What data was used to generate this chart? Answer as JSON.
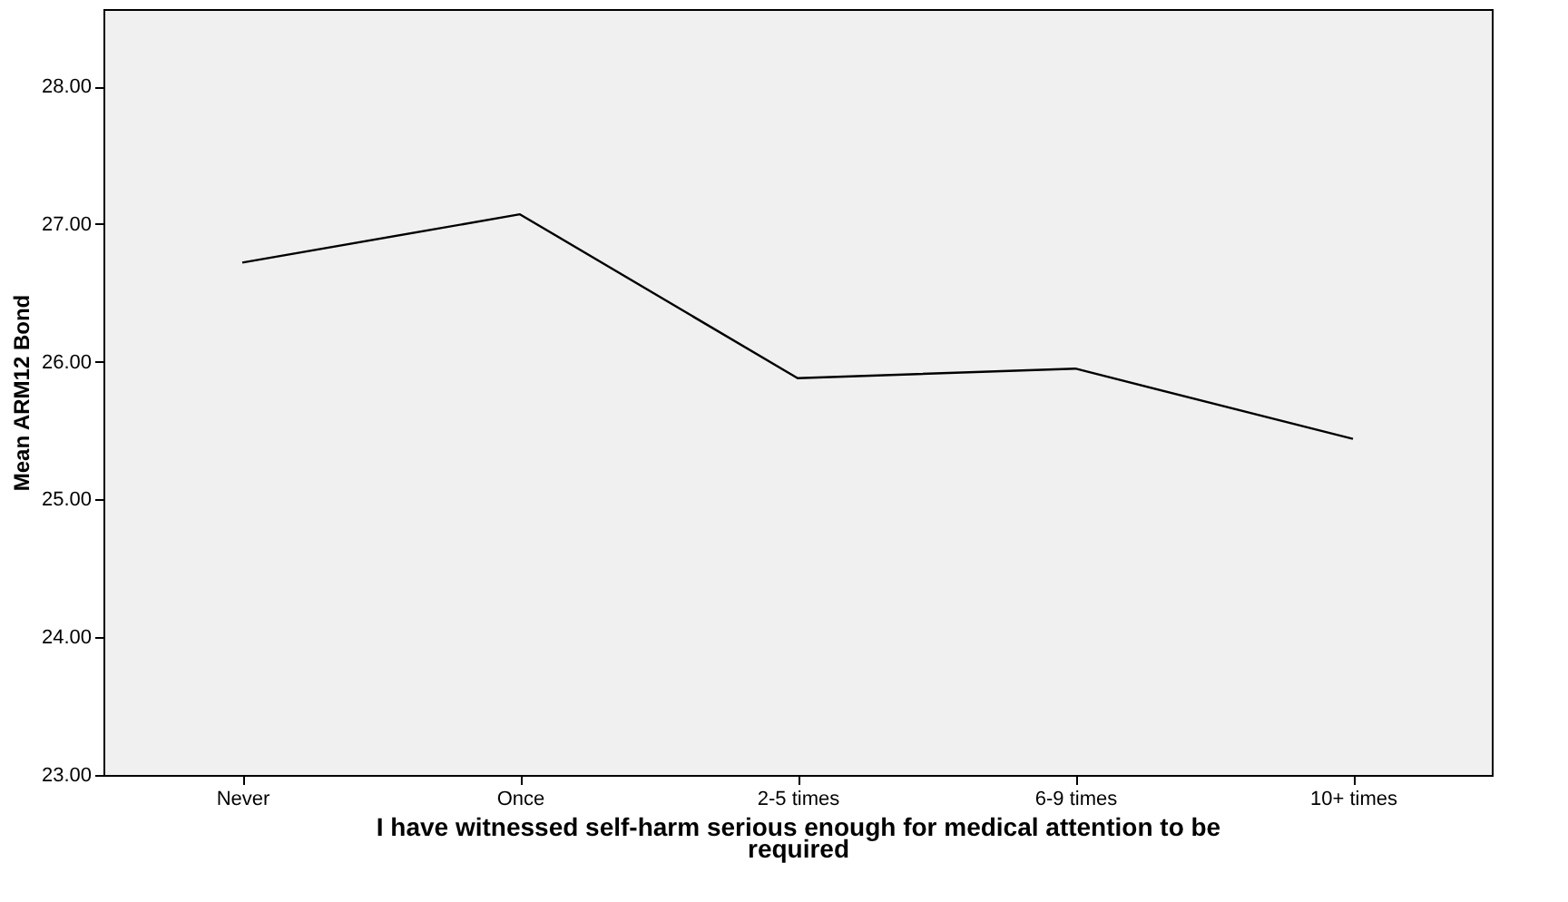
{
  "chart_data": {
    "type": "line",
    "xlabel": "I have witnessed self-harm serious enough for medical attention to be required",
    "ylabel": "Mean ARM12 Bond",
    "categories": [
      "Never",
      "Once",
      "2-5 times",
      "6-9 times",
      "10+ times"
    ],
    "series": [
      {
        "color": "#000000",
        "values": [
          26.72,
          27.07,
          25.88,
          25.95,
          25.44
        ]
      }
    ],
    "ylim": [
      23,
      28.56
    ],
    "yticks": [
      {
        "value": 23,
        "label": "23.00"
      },
      {
        "value": 24,
        "label": "24.00"
      },
      {
        "value": 25,
        "label": "25.00"
      },
      {
        "value": 26,
        "label": "26.00"
      },
      {
        "value": 27,
        "label": "27.00"
      },
      {
        "value": 28,
        "label": "28.00"
      }
    ],
    "grid": false,
    "legend": false,
    "marker": "none",
    "line_style": "solid"
  }
}
